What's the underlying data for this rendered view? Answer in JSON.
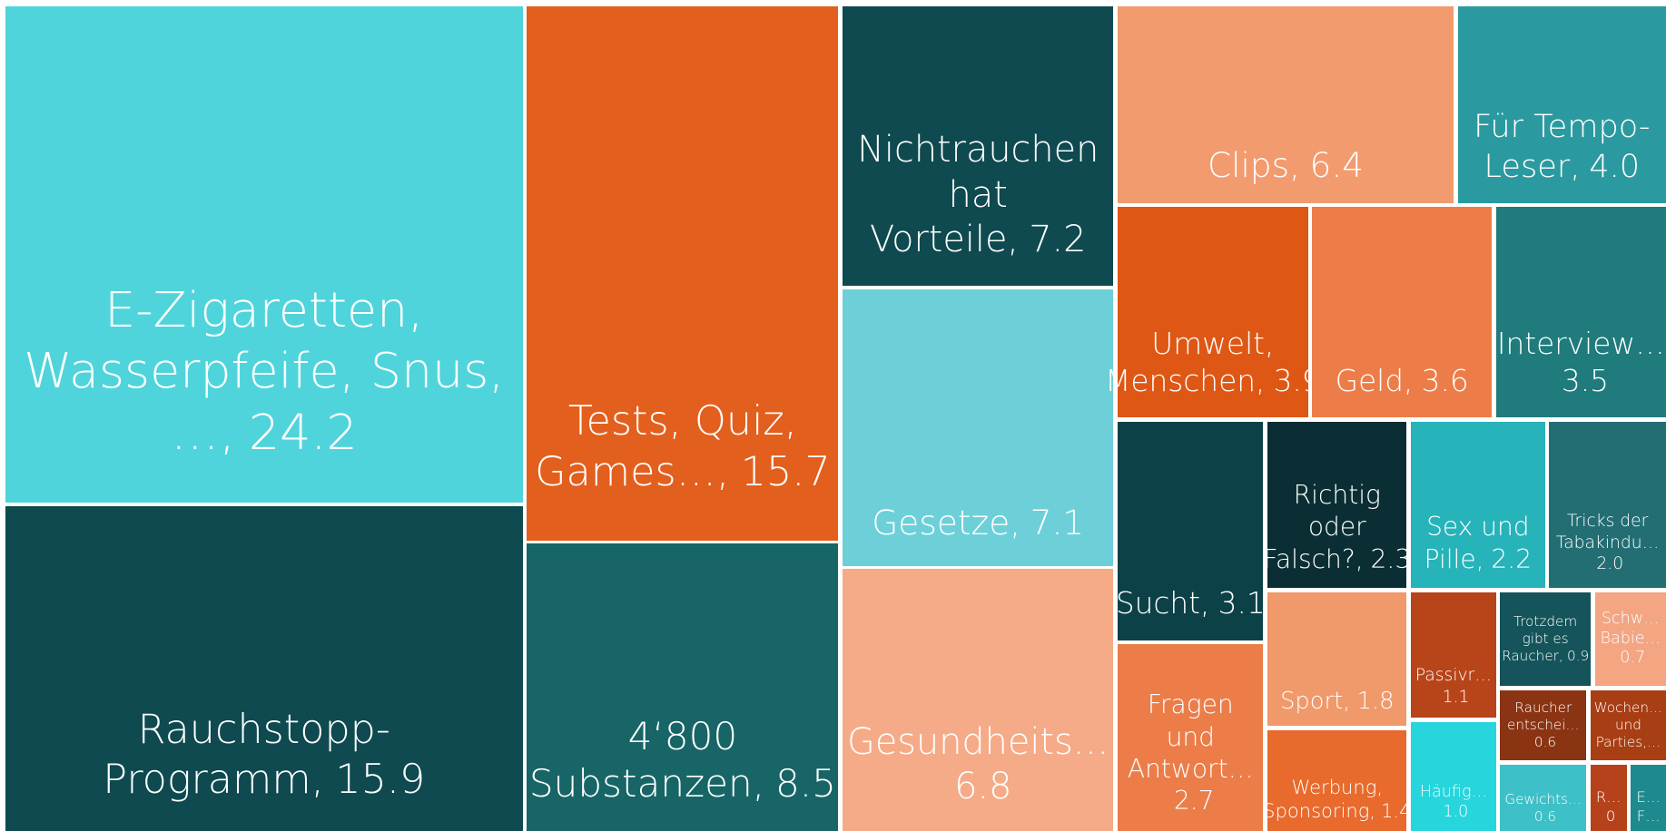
{
  "chart_data": {
    "type": "treemap",
    "categories": [
      "E-Zigaretten, Wasserpfeife, Snus, …,",
      "Rauchstopp-Programm,",
      "Tests, Quiz, Games…,",
      "4‘800 Substanzen,",
      "Nichtrauchen hat Vorteile,",
      "Gesetze,",
      "Gesundheits…",
      "Clips,",
      "Für Tempo-Leser,",
      "Umwelt, Menschen,",
      "Geld,",
      "Interview…",
      "Sucht,",
      "Richtig oder Falsch?,",
      "Sex und Pille,",
      "Tricks der Tabakindu…",
      "Fragen und Antwort…",
      "Sport,",
      "Werbung, Sponsoring,",
      "Passivr…",
      "Häufig…",
      "Trotzdem gibt es Raucher,",
      "Schw… Babie…",
      "Raucher entschei…",
      "Wochen… und Parties,…",
      "Gewichts…",
      "R…",
      "E… F…"
    ],
    "values": [
      24.2,
      15.9,
      15.7,
      8.5,
      7.2,
      7.1,
      6.8,
      6.4,
      4.0,
      3.9,
      3.6,
      3.5,
      3.1,
      2.3,
      2.2,
      2.0,
      2.7,
      1.8,
      1.4,
      1.1,
      1.0,
      0.9,
      0.7,
      0.6,
      0.6,
      0.6,
      0.4,
      0.3
    ],
    "value_labels": [
      "24.2",
      "15.9",
      "15.7",
      "8.5",
      "7.2",
      "7.1",
      "6.8",
      "6.4",
      "4.0",
      "3.9",
      "3.6",
      "3.5",
      "3.1",
      "2.3",
      "2.2",
      "2.0",
      "2.7",
      "1.8",
      "1.4",
      "1.1",
      "1.0",
      "0.9",
      "0.7",
      "0.6",
      null,
      "0.6",
      "0",
      null
    ],
    "colors": [
      "#50d4db",
      "#0e4a50",
      "#e35f1d",
      "#176567",
      "#0f4a50",
      "#6dd0d8",
      "#f5ab88",
      "#f29b6e",
      "#2a9aa0",
      "#de5715",
      "#ec7d48",
      "#1f7b7c",
      "#0c4147",
      "#0a2e33",
      "#26b3ba",
      "#236e73",
      "#ec7d48",
      "#f0996a",
      "#e86a2c",
      "#b8441a",
      "#27d5dc",
      "#14545a",
      "#f4a582",
      "#8a3414",
      "#a83e14",
      "#3ec0c8",
      "#b5421a",
      "#1f8a8e"
    ]
  }
}
